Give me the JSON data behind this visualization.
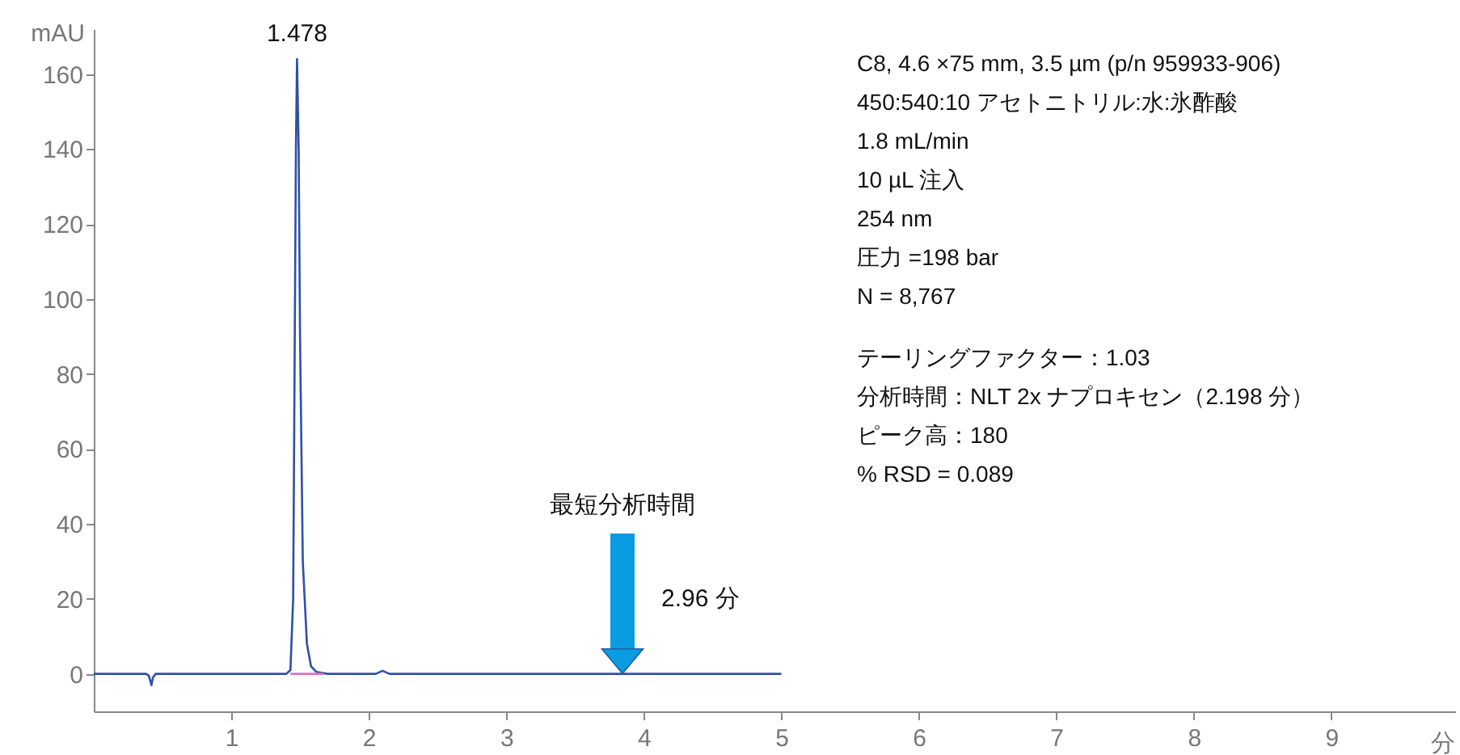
{
  "chart_data": {
    "type": "line",
    "xlabel": "分",
    "ylabel": "mAU",
    "xlim": [
      0,
      9.9
    ],
    "ylim": [
      -10,
      172
    ],
    "xticks": [
      1,
      2,
      3,
      4,
      5,
      6,
      7,
      8,
      9
    ],
    "yticks": [
      0,
      20,
      40,
      60,
      80,
      100,
      120,
      140,
      160
    ],
    "series": [
      {
        "color": "#2f4fa8",
        "x": [
          0,
          0.38,
          0.4,
          0.42,
          0.43,
          0.45,
          0.5,
          1.0,
          1.4,
          1.43,
          1.45,
          1.46,
          1.47,
          1.478,
          1.49,
          1.5,
          1.52,
          1.55,
          1.58,
          1.62,
          1.7,
          2.05,
          2.1,
          2.15,
          3,
          4,
          5
        ],
        "values": [
          0,
          0,
          -0.5,
          -3,
          -1,
          0,
          0,
          0,
          0,
          1,
          20,
          80,
          140,
          164,
          140,
          90,
          30,
          8,
          2,
          0.5,
          0,
          0,
          0.8,
          0,
          0,
          0,
          0
        ]
      },
      {
        "color": "#e070c0",
        "x": [
          1.43,
          1.67
        ],
        "values": [
          0,
          0
        ]
      }
    ],
    "annotations": [
      {
        "text": "1.478",
        "x": 1.478,
        "y": 164
      },
      "最短分析時間",
      "2.96 分",
      "C8, 4.6 ×75 mm, 3.5 µm (p/n 959933-906)",
      "450:540:10 アセトニトリル:水:氷酢酸",
      "1.8 mL/min",
      "10 µL 注入",
      "254 nm",
      "圧力 =198 bar",
      "N = 8,767",
      "テーリングファクター：1.03",
      "分析時間：NLT 2x ナプロキセン（2.198 分）",
      "ピーク高：180",
      "% RSD = 0.089"
    ]
  }
}
